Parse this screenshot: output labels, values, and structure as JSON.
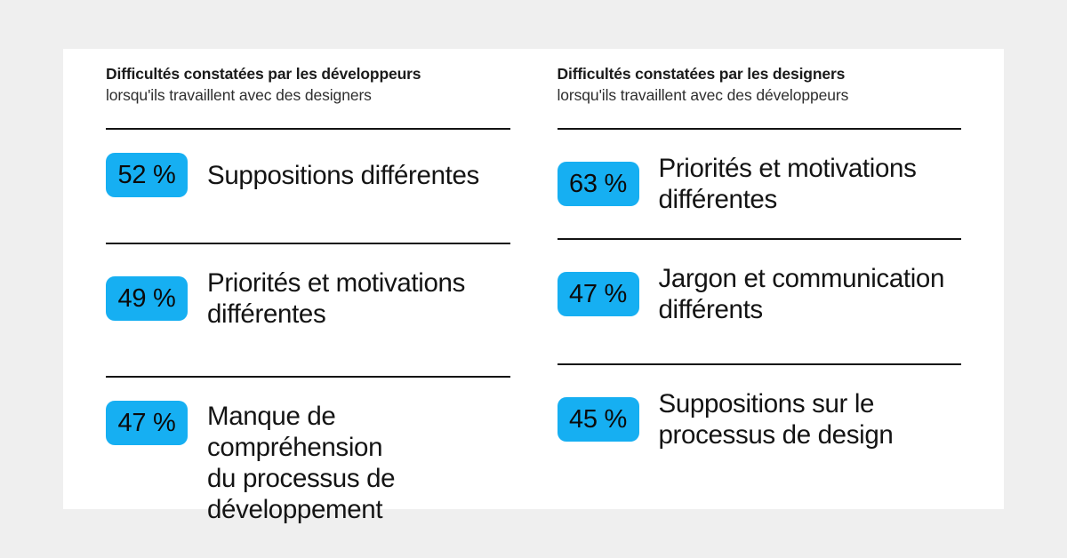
{
  "page": {
    "background_color": "#efefef",
    "card_background_color": "#ffffff",
    "accent_color": "#16aff2",
    "divider_color": "#131313"
  },
  "columns": [
    {
      "title_bold": "Difficultés constatées par les développeurs",
      "title_sub": "lorsqu'ils travaillent avec des designers",
      "items": [
        {
          "value": "52 %",
          "label": "Suppositions différentes"
        },
        {
          "value": "49 %",
          "label": "Priorités et motivations\ndifférentes"
        },
        {
          "value": "47 %",
          "label": "Manque de compréhension\ndu processus de\ndéveloppement"
        }
      ]
    },
    {
      "title_bold": "Difficultés constatées par les designers",
      "title_sub": "lorsqu'ils travaillent avec des développeurs",
      "items": [
        {
          "value": "63 %",
          "label": "Priorités et motivations\ndifférentes"
        },
        {
          "value": "47 %",
          "label": "Jargon et communication\ndifférents"
        },
        {
          "value": "45 %",
          "label": "Suppositions sur le\nprocessus de design"
        }
      ]
    }
  ],
  "chart_data": [
    {
      "type": "bar",
      "title": "Difficultés constatées par les développeurs lorsqu'ils travaillent avec des designers",
      "categories": [
        "Suppositions différentes",
        "Priorités et motivations différentes",
        "Manque de compréhension du processus de développement"
      ],
      "values": [
        52,
        49,
        47
      ],
      "unit": "%",
      "value_labels": [
        "52 %",
        "49 %",
        "47 %"
      ],
      "legend_position": "none",
      "grid": false
    },
    {
      "type": "bar",
      "title": "Difficultés constatées par les designers lorsqu'ils travaillent avec des développeurs",
      "categories": [
        "Priorités et motivations différentes",
        "Jargon et communication différents",
        "Suppositions sur le processus de design"
      ],
      "values": [
        63,
        47,
        45
      ],
      "unit": "%",
      "value_labels": [
        "63 %",
        "47 %",
        "45 %"
      ],
      "legend_position": "none",
      "grid": false
    }
  ]
}
